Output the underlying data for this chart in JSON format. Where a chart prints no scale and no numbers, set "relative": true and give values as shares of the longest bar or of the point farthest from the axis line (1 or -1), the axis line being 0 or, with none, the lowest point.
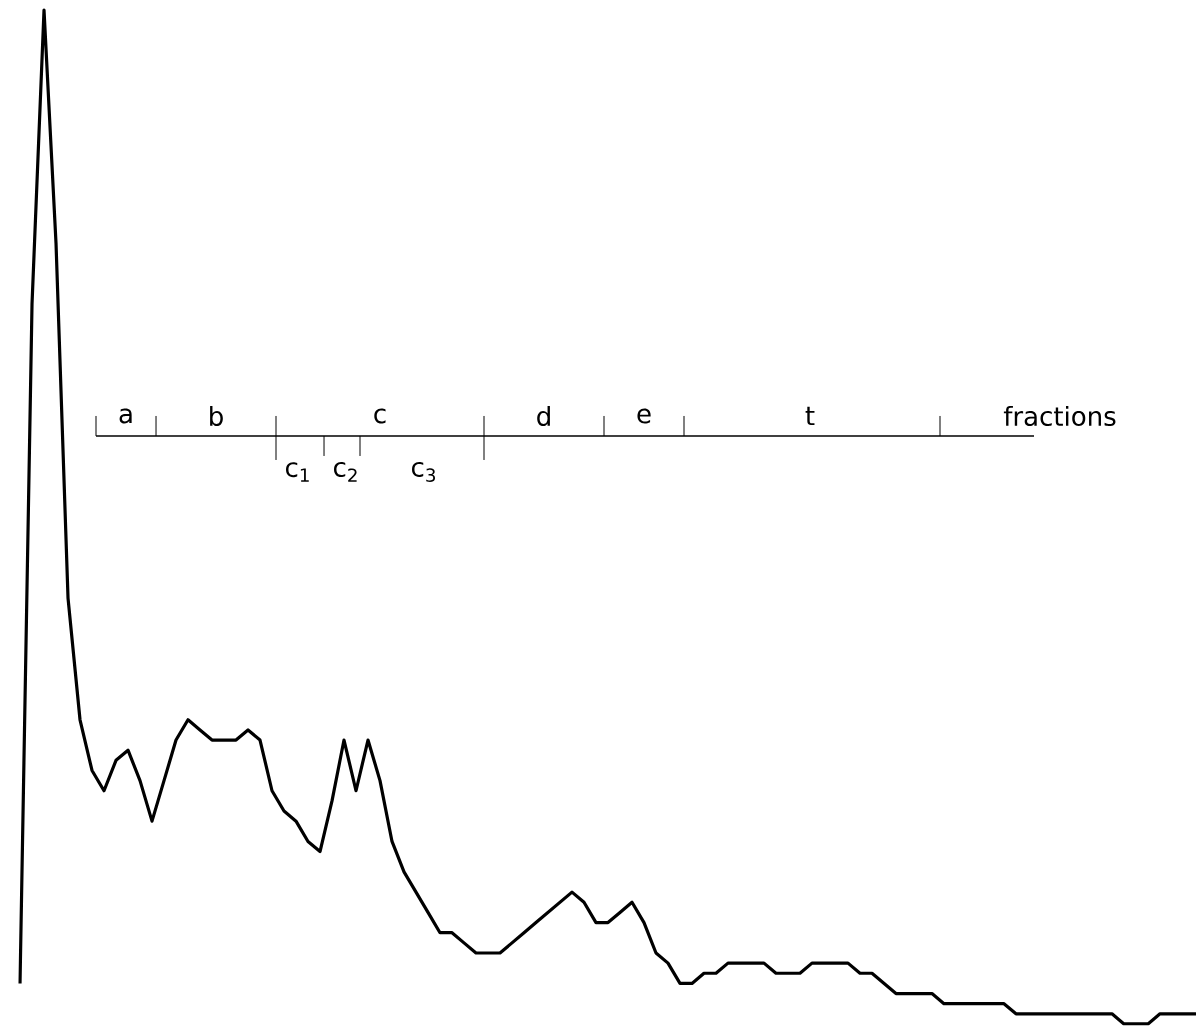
{
  "chart_data": {
    "type": "line",
    "relative": true,
    "color": "#000000",
    "categories": [
      null,
      null,
      null,
      null,
      null,
      null,
      null,
      null,
      null,
      null,
      null,
      null,
      null,
      null,
      null,
      null,
      null,
      null,
      null,
      null,
      null,
      null,
      null,
      null,
      null,
      null,
      null,
      null,
      null,
      null,
      null,
      null,
      null,
      null,
      null,
      null,
      null,
      null,
      null,
      null,
      null,
      null,
      null,
      null,
      null,
      null,
      null,
      null,
      null,
      null,
      null,
      null,
      null,
      null,
      null,
      null,
      null,
      null,
      null,
      null,
      null,
      null,
      null,
      null,
      null,
      null,
      null,
      null,
      null,
      null,
      null,
      null,
      null,
      null,
      null,
      null,
      null,
      null,
      null,
      null,
      null,
      null,
      null,
      null,
      null,
      null,
      null,
      null,
      null,
      null,
      null,
      null,
      null,
      null,
      null,
      null,
      null,
      null,
      null
    ],
    "values": [
      0.04,
      0.71,
      1.0,
      0.77,
      0.42,
      0.3,
      0.25,
      0.23,
      0.26,
      0.27,
      0.24,
      0.2,
      0.24,
      0.28,
      0.3,
      0.29,
      0.28,
      0.28,
      0.28,
      0.29,
      0.28,
      0.23,
      0.21,
      0.2,
      0.18,
      0.17,
      0.22,
      0.28,
      0.23,
      0.28,
      0.24,
      0.18,
      0.15,
      0.13,
      0.11,
      0.09,
      0.09,
      0.08,
      0.07,
      0.07,
      0.07,
      0.08,
      0.09,
      0.1,
      0.11,
      0.12,
      0.13,
      0.12,
      0.1,
      0.1,
      0.11,
      0.12,
      0.1,
      0.07,
      0.06,
      0.04,
      0.04,
      0.05,
      0.05,
      0.06,
      0.06,
      0.06,
      0.06,
      0.05,
      0.05,
      0.05,
      0.06,
      0.06,
      0.06,
      0.06,
      0.05,
      0.05,
      0.04,
      0.03,
      0.03,
      0.03,
      0.03,
      0.02,
      0.02,
      0.02,
      0.02,
      0.02,
      0.02,
      0.01,
      0.01,
      0.01,
      0.01,
      0.01,
      0.01,
      0.01,
      0.01,
      0.01,
      0.0,
      0.0,
      0.0,
      0.01,
      0.01,
      0.01,
      0.01
    ],
    "annotations": [
      "a",
      "b",
      "c",
      "d",
      "e",
      "t",
      "fractions",
      "c$_{1}$",
      "c$_{2}$",
      "c$_{3}$"
    ]
  }
}
